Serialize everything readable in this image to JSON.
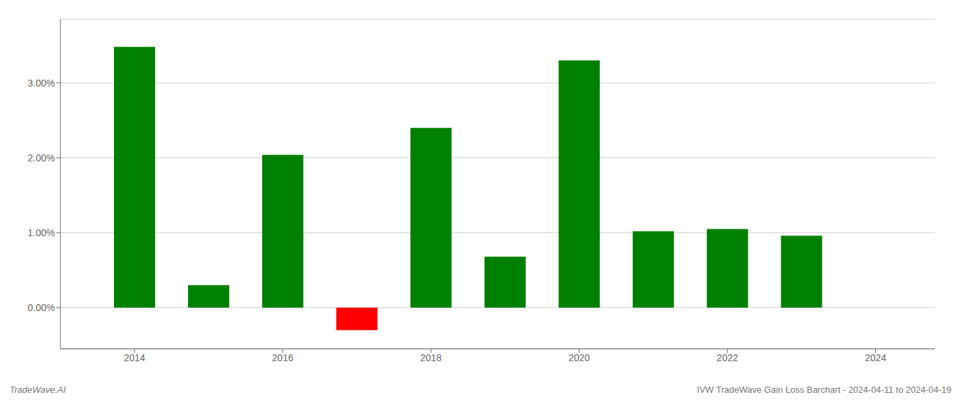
{
  "chart_data": {
    "type": "bar",
    "x": [
      2014,
      2015,
      2016,
      2017,
      2018,
      2019,
      2020,
      2021,
      2022,
      2023
    ],
    "values": [
      3.48,
      0.3,
      2.04,
      -0.3,
      2.4,
      0.68,
      3.3,
      1.02,
      1.05,
      0.96
    ],
    "colors": [
      "#008000",
      "#008000",
      "#008000",
      "#ff0000",
      "#008000",
      "#008000",
      "#008000",
      "#008000",
      "#008000",
      "#008000"
    ],
    "xlim": [
      2013.0,
      2024.8
    ],
    "xticks": [
      2014,
      2016,
      2018,
      2020,
      2022,
      2024
    ],
    "ylim": [
      -0.55,
      3.85
    ],
    "yticks": [
      {
        "value": 0.0,
        "label": "0.00%"
      },
      {
        "value": 1.0,
        "label": "1.00%"
      },
      {
        "value": 2.0,
        "label": "2.00%"
      },
      {
        "value": 3.0,
        "label": "3.00%"
      }
    ],
    "grid": true,
    "annotations": [
      "TradeWave.AI",
      "IVW TradeWave Gain Loss Barchart - 2024-04-11 to 2024-04-19"
    ]
  }
}
